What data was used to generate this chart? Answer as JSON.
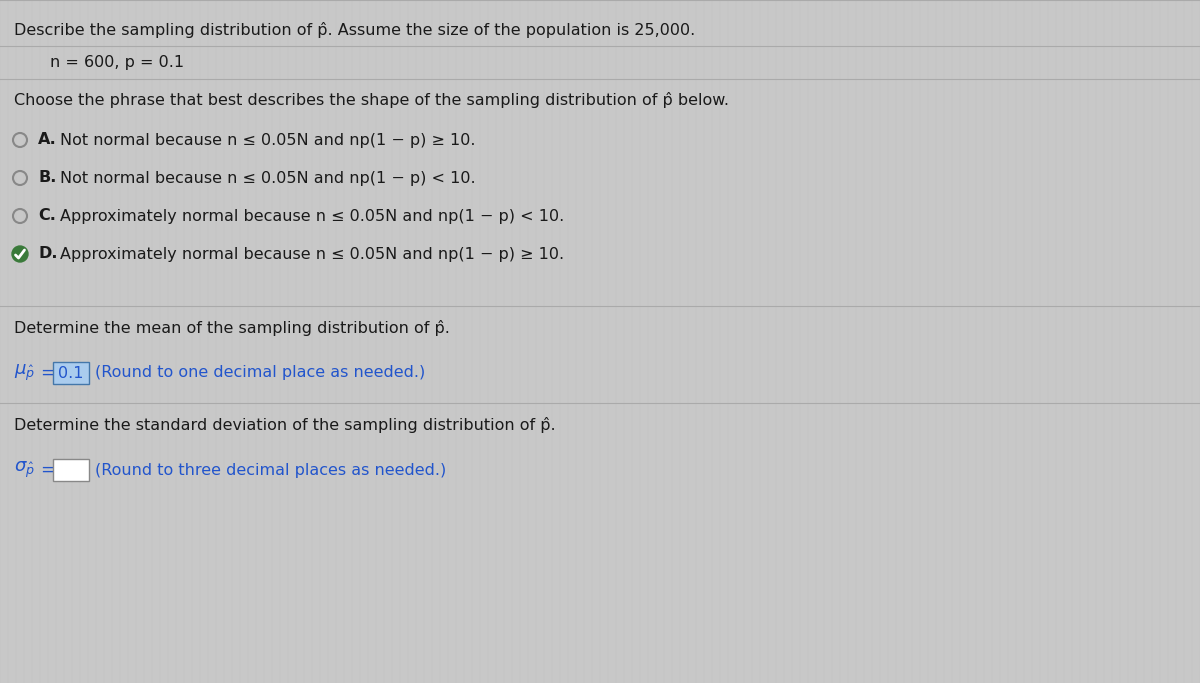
{
  "title_line": "Describe the sampling distribution of p̂. Assume the size of the population is 25,000.",
  "params_line": "n = 600, p = 0.1",
  "question_line": "Choose the phrase that best describes the shape of the sampling distribution of p̂ below.",
  "options": [
    {
      "label": "A.",
      "text": "Not normal because n ≤ 0.05N and np(1 − p) ≥ 10.",
      "selected": false,
      "correct": false
    },
    {
      "label": "B.",
      "text": "Not normal because n ≤ 0.05N and np(1 − p) < 10.",
      "selected": false,
      "correct": false
    },
    {
      "label": "C.",
      "text": "Approximately normal because n ≤ 0.05N and np(1 − p) < 10.",
      "selected": false,
      "correct": false
    },
    {
      "label": "D.",
      "text": "Approximately normal because n ≤ 0.05N and np(1 − p) ≥ 10.",
      "selected": true,
      "correct": true
    }
  ],
  "mean_section_title": "Determine the mean of the sampling distribution of p̂.",
  "mean_value": "0.1",
  "mean_note": "(Round to one decimal place as needed.)",
  "std_section_title": "Determine the standard deviation of the sampling distribution of p̂.",
  "std_note": "(Round to three decimal places as needed.)",
  "bg_color": "#c8c8c8",
  "text_color": "#1a1a1a",
  "highlight_color": "#2255cc",
  "answer_box_fill": "#aaccee",
  "empty_box_fill": "#ffffff",
  "sep_color": "#aaaaaa",
  "radio_color": "#888888",
  "check_bg": "#3a7a3a",
  "check_color": "#ffffff"
}
